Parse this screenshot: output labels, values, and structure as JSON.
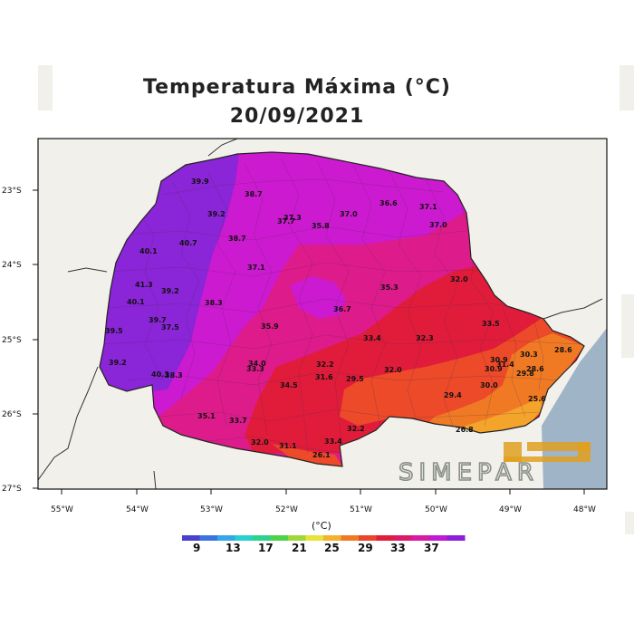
{
  "title": {
    "line1": "Temperatura Máxima (°C)",
    "line2": "20/09/2021"
  },
  "lat_labels": [
    "23°S",
    "24°S",
    "25°S",
    "26°S",
    "27°S"
  ],
  "lon_labels": [
    "55°W",
    "54°W",
    "53°W",
    "52°W",
    "51°W",
    "50°W",
    "49°W",
    "48°W"
  ],
  "colorbar": {
    "unit": "(°C)",
    "labels": [
      "9",
      "13",
      "17",
      "21",
      "25",
      "29",
      "33",
      "37"
    ],
    "colors": [
      "#4a3fcf",
      "#3b73e0",
      "#33a8e6",
      "#29d0d0",
      "#2fd18f",
      "#4fd24a",
      "#9ed838",
      "#e8e23a",
      "#f4b12c",
      "#f07a24",
      "#e8482a",
      "#e01e3c",
      "#dc1a6a",
      "#d81aa0",
      "#c21ad2",
      "#8d1fd6"
    ]
  },
  "logo_text": "SIMEPAR",
  "colors": {
    "ocean": "#9fb4c7",
    "land_out": "#f1f0ea",
    "violet": "#8a25d8",
    "magenta": "#cc1ad0",
    "pink": "#dd1b8a",
    "red": "#e01c3a",
    "orange_red": "#ec4a28",
    "orange": "#f07a24",
    "light_orange": "#f4a42a"
  },
  "values": [
    "39.9",
    "38.7",
    "39.2",
    "37.3",
    "37.7",
    "35.8",
    "37.0",
    "36.6",
    "37.1",
    "37.0",
    "40.1",
    "40.7",
    "38.7",
    "37.1",
    "32.0",
    "41.3",
    "39.2",
    "40.1",
    "38.3",
    "35.3",
    "36.7",
    "39.7",
    "37.5",
    "33.5",
    "35.9",
    "39.5",
    "33.4",
    "32.3",
    "30.3",
    "28.6",
    "39.2",
    "34.0",
    "33.3",
    "32.2",
    "31.6",
    "29.5",
    "32.0",
    "30.9",
    "31.4",
    "30.9",
    "29.8",
    "28.6",
    "40.3",
    "38.3",
    "34.5",
    "30.0",
    "29.4",
    "25.6",
    "35.1",
    "33.7",
    "32.2",
    "32.0",
    "31.1",
    "33.4",
    "26.1",
    "26.8"
  ]
}
